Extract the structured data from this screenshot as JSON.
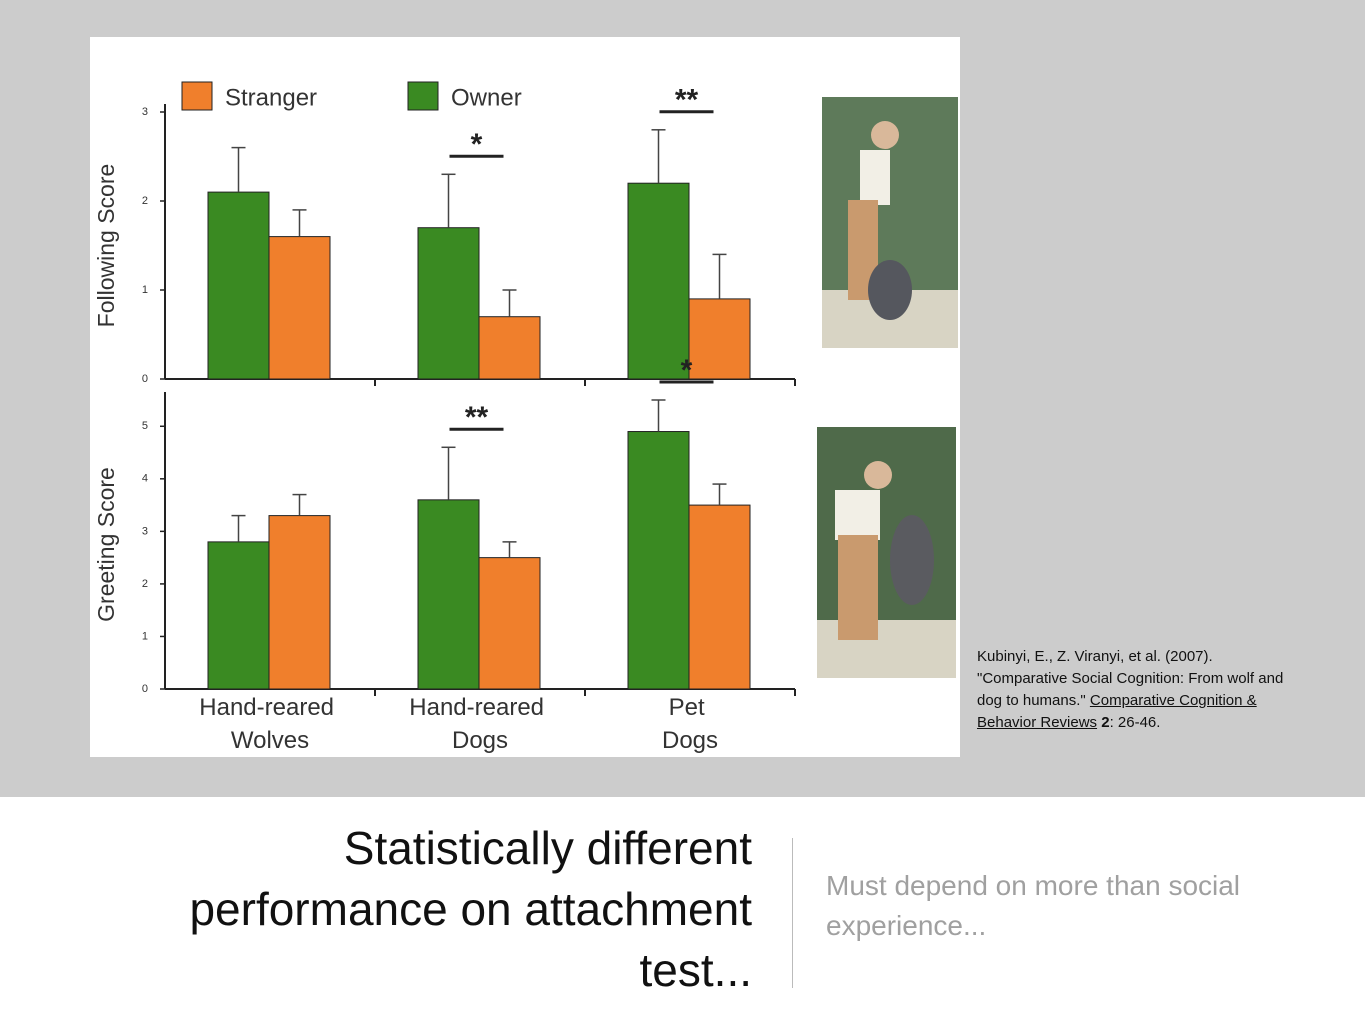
{
  "chart_data": [
    {
      "type": "bar",
      "y_label": "Following Score",
      "ylim": [
        0,
        3
      ],
      "yticks": [
        0,
        1,
        2,
        3
      ],
      "series": [
        {
          "name": "Owner",
          "color": "#3a8a22",
          "values": [
            2.1,
            1.7,
            2.2
          ],
          "errors": [
            0.5,
            0.6,
            0.6
          ]
        },
        {
          "name": "Stranger",
          "color": "#f07f2c",
          "values": [
            1.6,
            0.7,
            0.9
          ],
          "errors": [
            0.3,
            0.3,
            0.5
          ]
        }
      ],
      "annotations": [
        {
          "text": "*",
          "category": 1
        },
        {
          "text": "**",
          "category": 2
        }
      ]
    },
    {
      "type": "bar",
      "y_label": "Greeting Score",
      "ylim": [
        0,
        5.5
      ],
      "yticks": [
        0,
        1,
        2,
        3,
        4,
        5
      ],
      "categories": [
        "Hand-reared Wolves",
        "Hand-reared Dogs",
        "Pet Dogs"
      ],
      "series": [
        {
          "color": "#3a8a22",
          "values": [
            2.8,
            3.6,
            4.9
          ],
          "errors": [
            0.5,
            1.0,
            0.6
          ]
        },
        {
          "color": "#f07f2c",
          "values": [
            3.3,
            2.5,
            3.5
          ],
          "errors": [
            0.4,
            0.3,
            0.4
          ]
        }
      ],
      "annotations": [
        {
          "text": "**",
          "category": 1
        },
        {
          "text": "*",
          "category": 2
        }
      ]
    }
  ],
  "slide": {
    "title": "Statistically different performance on  attachment test...",
    "body": "Must depend on more than social experience...",
    "citation": [
      "Kubinyi, E., Z. Viranyi, et al. (2007). \"Comparative Social Cognition: From wolf and dog to humans.\" ",
      "Comparative Cognition & Behavior Reviews",
      " ",
      "2",
      ": 26-46."
    ]
  }
}
